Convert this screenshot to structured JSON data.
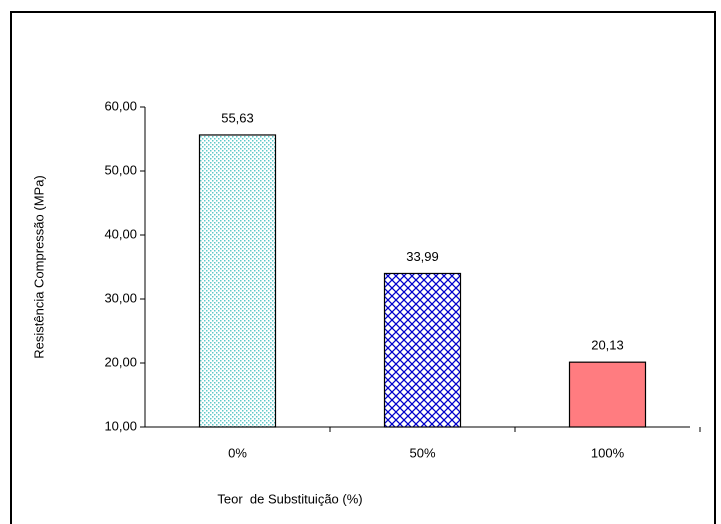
{
  "chart_data": {
    "type": "bar",
    "categories": [
      "0%",
      "50%",
      "100%"
    ],
    "values": [
      55.63,
      33.99,
      20.13
    ],
    "value_labels": [
      "55,63",
      "33,99",
      "20,13"
    ],
    "colors": [
      "#ccffff",
      "#0000cc",
      "#ff7c80"
    ],
    "patterns": [
      "dots",
      "crosshatch",
      "solid"
    ],
    "ylim": [
      10,
      60
    ],
    "yticks": [
      {
        "value": 10,
        "label": "10,00"
      },
      {
        "value": 20,
        "label": "20,00"
      },
      {
        "value": 30,
        "label": "30,00"
      },
      {
        "value": 40,
        "label": "40,00"
      },
      {
        "value": 50,
        "label": "50,00"
      },
      {
        "value": 60,
        "label": "60,00"
      }
    ],
    "y_label": "Resistência Compressão (MPa)",
    "x_label": "Teor  de Substituição (%)"
  }
}
